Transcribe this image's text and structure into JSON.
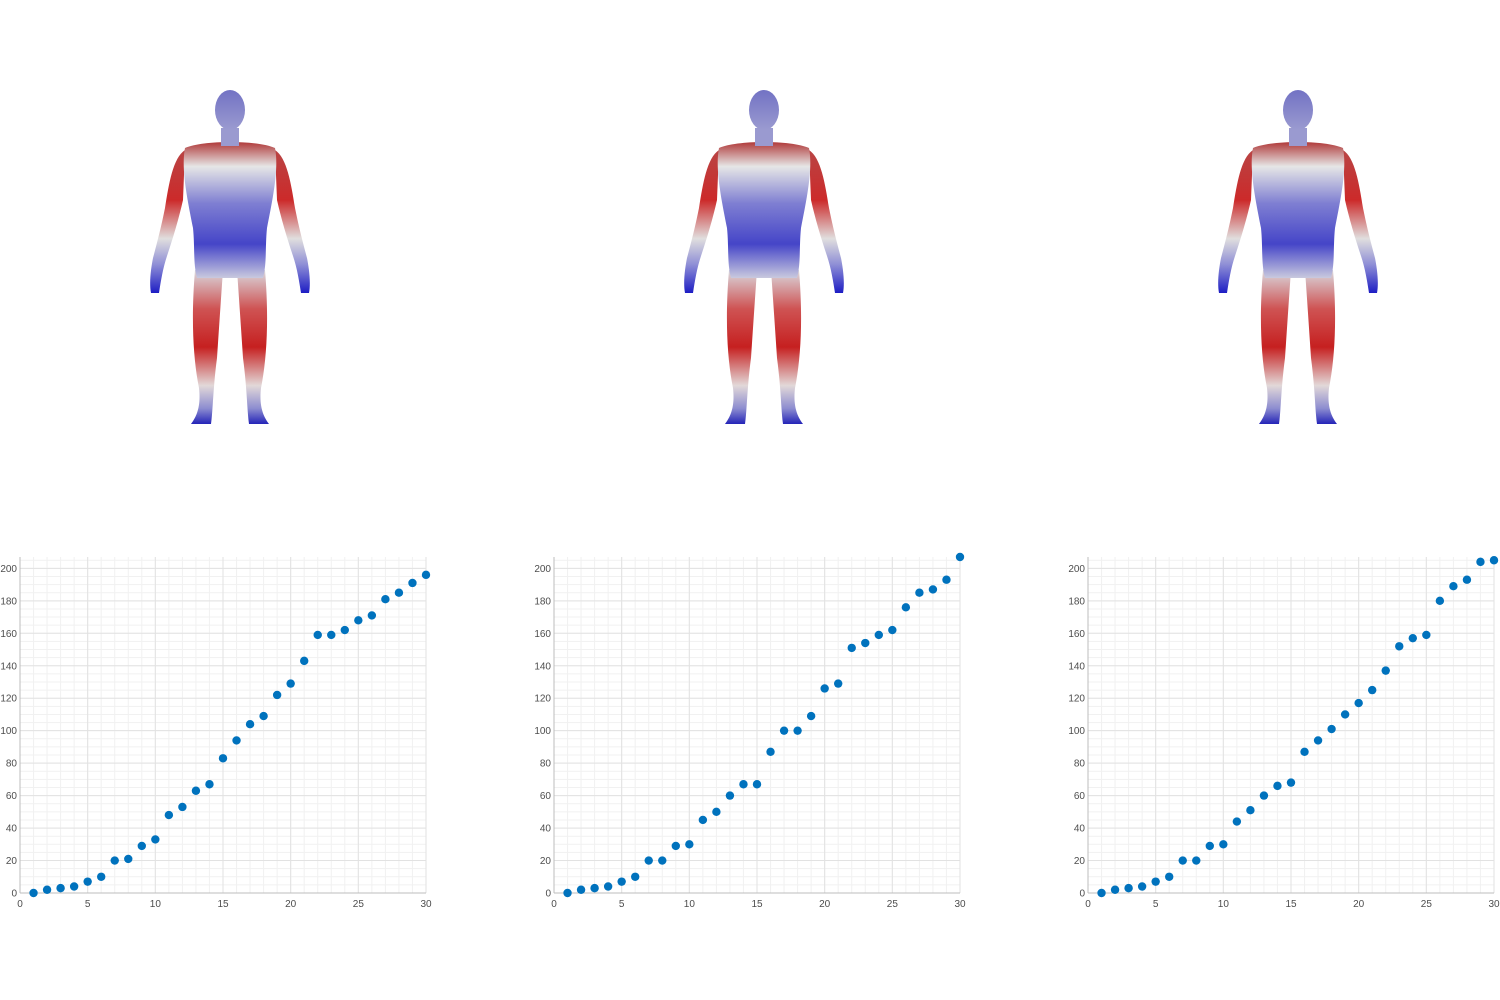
{
  "colors": {
    "marker": "#0072BD",
    "grid_major": "#e2e2e2",
    "grid_minor": "#f1f1f1",
    "axis": "#bdbdbd",
    "body_red": "#c62020",
    "body_white": "#e8e8e8",
    "body_blue": "#1a1ad0"
  },
  "figures": [
    {
      "type": "human-body-colormap-render"
    },
    {
      "type": "human-body-colormap-render"
    },
    {
      "type": "human-body-colormap-render"
    }
  ],
  "chart_data": [
    {
      "type": "scatter",
      "grid": true,
      "xlim": [
        0,
        30
      ],
      "ylim": [
        0,
        207
      ],
      "xticks": [
        0,
        5,
        10,
        15,
        20,
        25,
        30
      ],
      "yticks": [
        0,
        20,
        40,
        60,
        80,
        100,
        120,
        140,
        160,
        180,
        200
      ],
      "x": [
        1,
        2,
        3,
        4,
        5,
        6,
        7,
        8,
        9,
        10,
        11,
        12,
        13,
        14,
        15,
        16,
        17,
        18,
        19,
        20,
        21,
        22,
        23,
        24,
        25,
        26,
        27,
        28,
        29,
        30
      ],
      "y": [
        0,
        2,
        3,
        4,
        7,
        10,
        20,
        21,
        29,
        33,
        48,
        53,
        63,
        67,
        83,
        94,
        104,
        109,
        122,
        129,
        143,
        159,
        159,
        162,
        168,
        171,
        181,
        185,
        191,
        196
      ]
    },
    {
      "type": "scatter",
      "grid": true,
      "xlim": [
        0,
        30
      ],
      "ylim": [
        0,
        207
      ],
      "xticks": [
        0,
        5,
        10,
        15,
        20,
        25,
        30
      ],
      "yticks": [
        0,
        20,
        40,
        60,
        80,
        100,
        120,
        140,
        160,
        180,
        200
      ],
      "x": [
        1,
        2,
        3,
        4,
        5,
        6,
        7,
        8,
        9,
        10,
        11,
        12,
        13,
        14,
        15,
        16,
        17,
        18,
        19,
        20,
        21,
        22,
        23,
        24,
        25,
        26,
        27,
        28,
        29,
        30
      ],
      "y": [
        0,
        2,
        3,
        4,
        7,
        10,
        20,
        20,
        29,
        30,
        45,
        50,
        60,
        67,
        67,
        87,
        100,
        100,
        109,
        126,
        129,
        151,
        154,
        159,
        162,
        176,
        185,
        187,
        193,
        207
      ]
    },
    {
      "type": "scatter",
      "grid": true,
      "xlim": [
        0,
        30
      ],
      "ylim": [
        0,
        207
      ],
      "xticks": [
        0,
        5,
        10,
        15,
        20,
        25,
        30
      ],
      "yticks": [
        0,
        20,
        40,
        60,
        80,
        100,
        120,
        140,
        160,
        180,
        200
      ],
      "x": [
        1,
        2,
        3,
        4,
        5,
        6,
        7,
        8,
        9,
        10,
        11,
        12,
        13,
        14,
        15,
        16,
        17,
        18,
        19,
        20,
        21,
        22,
        23,
        24,
        25,
        26,
        27,
        28,
        29,
        30
      ],
      "y": [
        0,
        2,
        3,
        4,
        7,
        10,
        20,
        20,
        29,
        30,
        44,
        51,
        60,
        66,
        68,
        87,
        94,
        101,
        110,
        117,
        125,
        137,
        152,
        157,
        159,
        180,
        189,
        193,
        204,
        205
      ]
    }
  ]
}
